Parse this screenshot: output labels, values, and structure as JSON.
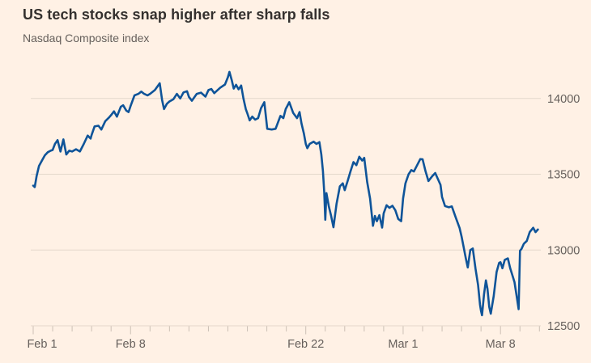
{
  "header": {
    "title": "US tech stocks snap higher after sharp falls",
    "subtitle": "Nasdaq Composite index"
  },
  "colors": {
    "background": "#FFF1E5",
    "line": "#0F5499",
    "grid": "#E4D8CB",
    "tick": "#CCC0B5",
    "title_text": "#33302E",
    "label_text": "#66605C"
  },
  "chart_data": {
    "type": "line",
    "title": "US tech stocks snap higher after sharp falls",
    "subtitle": "Nasdaq Composite index",
    "legend": "none",
    "x_axis": {
      "unit": "trading day (0 = Feb 1; fractional values = intraday)",
      "range": [
        0,
        26
      ],
      "minor_ticks_every_trading_day": true,
      "ticks": [
        {
          "t": 0,
          "label": "Feb 1"
        },
        {
          "t": 5,
          "label": "Feb 8"
        },
        {
          "t": 14,
          "label": "Feb 22"
        },
        {
          "t": 19,
          "label": "Mar 1"
        },
        {
          "t": 24,
          "label": "Mar 8"
        }
      ]
    },
    "y_axis": {
      "side": "right",
      "gridlines": true,
      "range": [
        12350,
        14250
      ],
      "ticks": [
        12500,
        13000,
        13500,
        14000
      ]
    },
    "series": [
      {
        "name": "Nasdaq Composite index",
        "points": [
          [
            0,
            13425
          ],
          [
            0.08,
            13415
          ],
          [
            0.18,
            13490
          ],
          [
            0.3,
            13555
          ],
          [
            0.45,
            13590
          ],
          [
            0.6,
            13625
          ],
          [
            0.75,
            13645
          ],
          [
            0.9,
            13655
          ],
          [
            1,
            13660
          ],
          [
            1.12,
            13700
          ],
          [
            1.25,
            13725
          ],
          [
            1.4,
            13650
          ],
          [
            1.55,
            13730
          ],
          [
            1.7,
            13630
          ],
          [
            1.85,
            13655
          ],
          [
            2,
            13650
          ],
          [
            2.2,
            13665
          ],
          [
            2.4,
            13650
          ],
          [
            2.6,
            13700
          ],
          [
            2.8,
            13755
          ],
          [
            2.95,
            13735
          ],
          [
            3,
            13760
          ],
          [
            3.15,
            13815
          ],
          [
            3.35,
            13820
          ],
          [
            3.5,
            13795
          ],
          [
            3.7,
            13850
          ],
          [
            3.9,
            13875
          ],
          [
            4,
            13890
          ],
          [
            4.15,
            13915
          ],
          [
            4.3,
            13880
          ],
          [
            4.5,
            13945
          ],
          [
            4.62,
            13955
          ],
          [
            4.78,
            13920
          ],
          [
            4.9,
            13910
          ],
          [
            5,
            13950
          ],
          [
            5.2,
            14020
          ],
          [
            5.4,
            14030
          ],
          [
            5.55,
            14045
          ],
          [
            5.7,
            14030
          ],
          [
            5.87,
            14020
          ],
          [
            6,
            14030
          ],
          [
            6.25,
            14055
          ],
          [
            6.5,
            14100
          ],
          [
            6.62,
            13990
          ],
          [
            6.72,
            13930
          ],
          [
            6.87,
            13965
          ],
          [
            7,
            13980
          ],
          [
            7.2,
            13995
          ],
          [
            7.38,
            14030
          ],
          [
            7.55,
            14000
          ],
          [
            7.72,
            14040
          ],
          [
            7.9,
            14048
          ],
          [
            8,
            14010
          ],
          [
            8.15,
            13985
          ],
          [
            8.4,
            14030
          ],
          [
            8.62,
            14038
          ],
          [
            8.85,
            14012
          ],
          [
            9,
            14055
          ],
          [
            9.15,
            14062
          ],
          [
            9.3,
            14035
          ],
          [
            9.6,
            14070
          ],
          [
            9.85,
            14092
          ],
          [
            10,
            14140
          ],
          [
            10.08,
            14175
          ],
          [
            10.2,
            14120
          ],
          [
            10.3,
            14065
          ],
          [
            10.42,
            14090
          ],
          [
            10.55,
            14060
          ],
          [
            10.68,
            14085
          ],
          [
            10.8,
            14000
          ],
          [
            10.92,
            13930
          ],
          [
            11,
            13900
          ],
          [
            11.12,
            13855
          ],
          [
            11.25,
            13880
          ],
          [
            11.4,
            13860
          ],
          [
            11.55,
            13870
          ],
          [
            11.7,
            13935
          ],
          [
            11.87,
            13975
          ],
          [
            12.02,
            13800
          ],
          [
            12.25,
            13795
          ],
          [
            12.45,
            13800
          ],
          [
            12.7,
            13885
          ],
          [
            12.85,
            13870
          ],
          [
            12.97,
            13930
          ],
          [
            13.05,
            13950
          ],
          [
            13.15,
            13975
          ],
          [
            13.35,
            13905
          ],
          [
            13.55,
            13870
          ],
          [
            13.68,
            13910
          ],
          [
            13.78,
            13835
          ],
          [
            13.9,
            13770
          ],
          [
            14,
            13700
          ],
          [
            14.08,
            13672
          ],
          [
            14.2,
            13700
          ],
          [
            14.4,
            13715
          ],
          [
            14.55,
            13700
          ],
          [
            14.7,
            13712
          ],
          [
            14.8,
            13630
          ],
          [
            14.88,
            13520
          ],
          [
            14.95,
            13380
          ],
          [
            15,
            13200
          ],
          [
            15.06,
            13375
          ],
          [
            15.18,
            13290
          ],
          [
            15.3,
            13225
          ],
          [
            15.42,
            13150
          ],
          [
            15.58,
            13305
          ],
          [
            15.75,
            13420
          ],
          [
            15.9,
            13440
          ],
          [
            16,
            13395
          ],
          [
            16.15,
            13455
          ],
          [
            16.3,
            13520
          ],
          [
            16.45,
            13580
          ],
          [
            16.6,
            13560
          ],
          [
            16.75,
            13615
          ],
          [
            16.9,
            13590
          ],
          [
            17,
            13608
          ],
          [
            17.15,
            13450
          ],
          [
            17.3,
            13340
          ],
          [
            17.45,
            13160
          ],
          [
            17.55,
            13225
          ],
          [
            17.65,
            13190
          ],
          [
            17.78,
            13230
          ],
          [
            17.92,
            13148
          ],
          [
            18,
            13242
          ],
          [
            18.15,
            13295
          ],
          [
            18.3,
            13278
          ],
          [
            18.45,
            13292
          ],
          [
            18.6,
            13262
          ],
          [
            18.75,
            13205
          ],
          [
            18.9,
            13190
          ],
          [
            19,
            13340
          ],
          [
            19.12,
            13440
          ],
          [
            19.28,
            13500
          ],
          [
            19.42,
            13527
          ],
          [
            19.55,
            13518
          ],
          [
            19.7,
            13555
          ],
          [
            19.88,
            13600
          ],
          [
            20,
            13598
          ],
          [
            20.15,
            13520
          ],
          [
            20.3,
            13455
          ],
          [
            20.5,
            13488
          ],
          [
            20.65,
            13508
          ],
          [
            20.8,
            13465
          ],
          [
            20.92,
            13430
          ],
          [
            21,
            13350
          ],
          [
            21.15,
            13290
          ],
          [
            21.35,
            13282
          ],
          [
            21.5,
            13288
          ],
          [
            21.7,
            13215
          ],
          [
            21.9,
            13145
          ],
          [
            22,
            13090
          ],
          [
            22.1,
            13025
          ],
          [
            22.22,
            12945
          ],
          [
            22.32,
            12885
          ],
          [
            22.45,
            13000
          ],
          [
            22.58,
            13010
          ],
          [
            22.72,
            12875
          ],
          [
            22.85,
            12770
          ],
          [
            22.95,
            12640
          ],
          [
            23,
            12600
          ],
          [
            23.05,
            12570
          ],
          [
            23.15,
            12705
          ],
          [
            23.25,
            12800
          ],
          [
            23.33,
            12745
          ],
          [
            23.42,
            12625
          ],
          [
            23.5,
            12580
          ],
          [
            23.65,
            12695
          ],
          [
            23.8,
            12855
          ],
          [
            23.93,
            12915
          ],
          [
            24,
            12920
          ],
          [
            24.1,
            12880
          ],
          [
            24.22,
            12935
          ],
          [
            24.38,
            12945
          ],
          [
            24.5,
            12880
          ],
          [
            24.62,
            12830
          ],
          [
            24.72,
            12788
          ],
          [
            24.83,
            12695
          ],
          [
            24.93,
            12610
          ],
          [
            25,
            12995
          ],
          [
            25.08,
            13008
          ],
          [
            25.2,
            13042
          ],
          [
            25.35,
            13060
          ],
          [
            25.5,
            13118
          ],
          [
            25.68,
            13147
          ],
          [
            25.8,
            13118
          ],
          [
            25.92,
            13135
          ]
        ]
      }
    ]
  }
}
